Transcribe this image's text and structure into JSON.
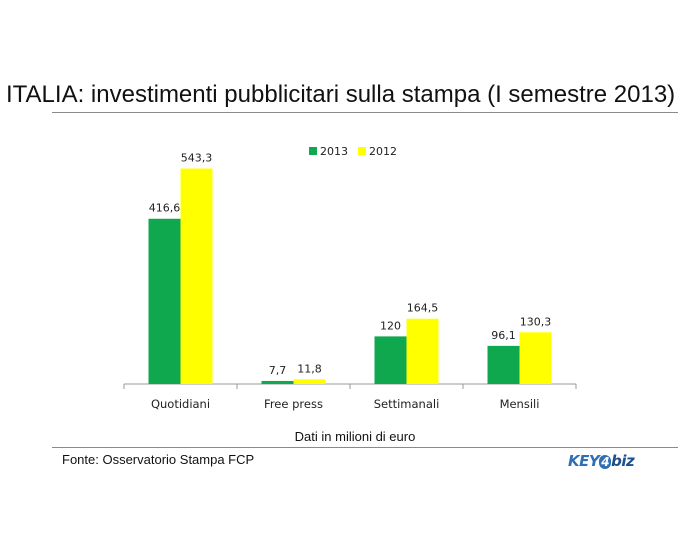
{
  "title": "ITALIA: investimenti pubblicitari sulla stampa (I semestre 2013)",
  "footnote": "Dati in milioni di euro",
  "source": "Fonte: Osservatorio Stampa FCP",
  "logo": {
    "text_a": "KEY",
    "text_b": "4",
    "text_c": "biz"
  },
  "colors": {
    "series_2013": "#0fa84f",
    "series_2012": "#ffff00",
    "axis": "#9a9a9a",
    "logo": "#2e6fb5"
  },
  "chart_data": {
    "type": "bar",
    "categories": [
      "Quotidiani",
      "Free press",
      "Settimanali",
      "Mensili"
    ],
    "series": [
      {
        "name": "2013",
        "values": [
          416.6,
          7.7,
          120,
          96.1
        ],
        "labels": [
          "416,6",
          "7,7",
          "120",
          "96,1"
        ]
      },
      {
        "name": "2012",
        "values": [
          543.3,
          11.8,
          164.5,
          130.3
        ],
        "labels": [
          "543,3",
          "11,8",
          "164,5",
          "130,3"
        ]
      }
    ],
    "ylim": [
      0,
      600
    ],
    "grid": false,
    "legend": "top-center"
  }
}
